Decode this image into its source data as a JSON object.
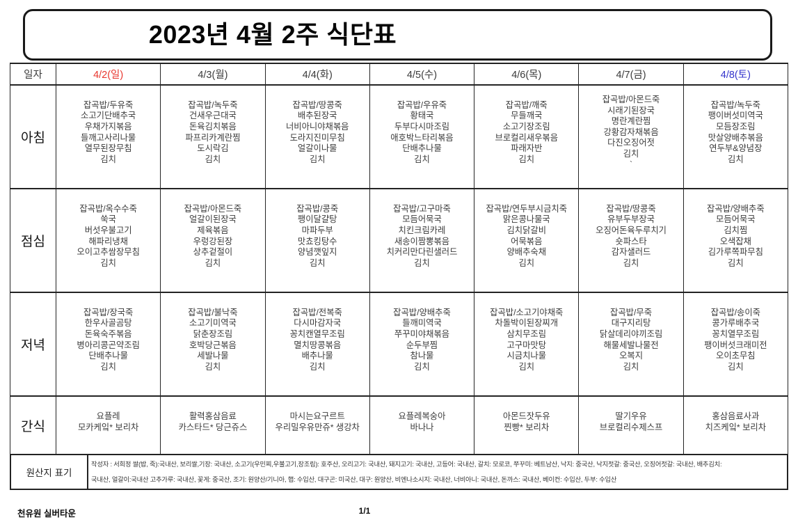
{
  "title": "2023년 4월 2주 식단표",
  "colors": {
    "sunday_red": "#e8362e",
    "saturday_blue": "#3333cc",
    "border": "#232323",
    "body_text": "#3c3c3c"
  },
  "table": {
    "date_label": "일자",
    "days": [
      {
        "label": "4/2(일)",
        "color": "#e8362e"
      },
      {
        "label": "4/3(월)",
        "color": ""
      },
      {
        "label": "4/4(화)",
        "color": ""
      },
      {
        "label": "4/5(수)",
        "color": ""
      },
      {
        "label": "4/6(목)",
        "color": ""
      },
      {
        "label": "4/7(금)",
        "color": ""
      },
      {
        "label": "4/8(토)",
        "color": "#3333cc"
      }
    ],
    "rows": [
      {
        "key": "breakfast",
        "label": "아침",
        "cells": [
          [
            "잡곡밥/두유죽",
            "소고기단배추국",
            "우채가지볶음",
            "들깨고사리나물",
            "열무된장무침",
            "김치"
          ],
          [
            "잡곡밥/녹두죽",
            "건새우근대국",
            "돈육김치볶음",
            "파프리카계란찜",
            "도시락김",
            "김치"
          ],
          [
            "잡곡밥/땅콩죽",
            "배추된장국",
            "너비아니야채볶음",
            "도라지진미무침",
            "얼갈이나물",
            "김치"
          ],
          [
            "잡곡밥/우유죽",
            "황태국",
            "두부다시마조림",
            "애호박느타리볶음",
            "단배추나물",
            "김치"
          ],
          [
            "잡곡밥/깨죽",
            "무들깨국",
            "소고기장조림",
            "브로컬리새우볶음",
            "파래자반",
            "김치"
          ],
          [
            "잡곡밥/아몬드죽",
            "시래기된장국",
            "명란계란찜",
            "강황감자채볶음",
            "다진오징어젓",
            "김치",
            "`"
          ],
          [
            "잡곡밥/녹두죽",
            "팽이버섯미역국",
            "모듬장조림",
            "맛살양배추볶음",
            "연두부&양념장",
            "김치"
          ]
        ]
      },
      {
        "key": "lunch",
        "label": "점심",
        "cells": [
          [
            "잡곡밥/옥수수죽",
            "쑥국",
            "버섯우불고기",
            "해파리냉채",
            "오이고추쌈장무침",
            "김치"
          ],
          [
            "잡곡밥/아몬드죽",
            "얼갈이된장국",
            "제육볶음",
            "우렁강된장",
            "상추겉절이",
            "김치"
          ],
          [
            "잡곡밥/콩죽",
            "팽이달걀탕",
            "마파두부",
            "맛쵸킹탕수",
            "양념깻잎지",
            "김치"
          ],
          [
            "잡곡밥/고구마죽",
            "모듬어묵국",
            "치킨크림카레",
            "새송이짬뽕볶음",
            "치커리만다린샐러드",
            "김치"
          ],
          [
            "잡곡밥/연두부시금치죽",
            "맑은콩나물국",
            "김치닭갈비",
            "어묵볶음",
            "양배추숙채",
            "김치"
          ],
          [
            "잡곡밥/땅콩죽",
            "유부두부장국",
            "오징어돈육두루치기",
            "숏파스타",
            "감자샐러드",
            "김치"
          ],
          [
            "잡곡밥/양배추죽",
            "모듬어묵국",
            "김치찜",
            "오색잡채",
            "김가루쪽파무침",
            "김치"
          ]
        ]
      },
      {
        "key": "dinner",
        "label": "저녁",
        "cells": [
          [
            "잡곡밥/장국죽",
            "한우사골곰탕",
            "돈육숙주볶음",
            "병아리콩곤약조림",
            "단배추나물",
            "김치"
          ],
          [
            "잡곡밥/불낙죽",
            "소고기미역국",
            "닭춘장조림",
            "호박당근볶음",
            "세발나물",
            "김치"
          ],
          [
            "잡곡밥/전복죽",
            "다시마감자국",
            "꽁치캔열무조림",
            "멸치땅콩볶음",
            "배추나물",
            "김치"
          ],
          [
            "잡곡밥/양배추죽",
            "들깨미역국",
            "쭈꾸미야채볶음",
            "순두부찜",
            "참나물",
            "김치"
          ],
          [
            "잡곡밥/소고기야채죽",
            "차돌박이된장찌개",
            "삼치무조림",
            "고구마맛탕",
            "시금치나물",
            "김치"
          ],
          [
            "잡곡밥/무죽",
            "대구지리탕",
            "닭살데리야끼조림",
            "해물세발나물전",
            "오복지",
            "김치"
          ],
          [
            "잡곡밥/송이죽",
            "콩가루배추국",
            "꽁치열무조림",
            "팽이버섯크래미전",
            "오이초무침",
            "김치"
          ]
        ]
      },
      {
        "key": "snack",
        "label": "간식",
        "cells": [
          [
            "요플레",
            "모카케잌* 보리차"
          ],
          [
            "활력홍삼음료",
            "카스타드* 당근쥬스"
          ],
          [
            "마시는요구르트",
            "우리밀우유만쥬* 생강차"
          ],
          [
            "요플레복숭아",
            "바나나"
          ],
          [
            "아몬드잣두유",
            "찐빵* 보리차"
          ],
          [
            "딸기우유",
            "브로컬리수제스프"
          ],
          [
            "홍삼음료사과",
            "치즈케잌* 보리차"
          ]
        ]
      }
    ],
    "origin": {
      "label": "원산지 표기",
      "line1": "작성자 : 서희정  쌀(밥, 죽):국내산, 보리쌀,기장: 국내산, 소고기(우민찌,우불고기,장조림): 호주산, 오리고기: 국내산, 돼지고기: 국내산, 고등어: 국내산, 갈치: 모로코, 쭈꾸미: 베트남산, 낙지: 중국산, 낙지젓갈: 중국산, 오징어젓갈: 국내산, 배추김치:",
      "line2": "국내산, 얼갈이:국내산 고추가루: 국내산, 꽃게: 중국산, 조기: 원양산/기니아, 햅: 수입산, 대구곤: 미국산, 대구: 원양산, 비엔나소시지: 국내산, 너비아니: 국내산, 돈까스: 국내산, 베이컨: 수입산, 두부: 수입산"
    }
  },
  "footer": {
    "facility": "천유원 실버타운",
    "page": "1/1"
  }
}
